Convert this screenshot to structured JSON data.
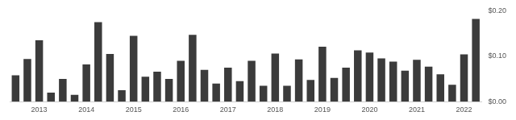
{
  "chart_data": {
    "type": "bar",
    "categories": [
      null,
      null,
      "2013",
      null,
      null,
      null,
      "2014",
      null,
      null,
      null,
      "2015",
      null,
      null,
      null,
      "2016",
      null,
      null,
      null,
      "2017",
      null,
      null,
      null,
      "2018",
      null,
      null,
      null,
      "2019",
      null,
      null,
      null,
      "2020",
      null,
      null,
      null,
      "2021",
      null,
      null,
      null,
      "2022",
      null
    ],
    "values": [
      0.058,
      0.094,
      0.135,
      0.02,
      0.05,
      0.015,
      0.082,
      0.175,
      0.105,
      0.025,
      0.145,
      0.055,
      0.066,
      0.05,
      0.09,
      0.147,
      0.07,
      0.04,
      0.075,
      0.045,
      0.09,
      0.035,
      0.106,
      0.035,
      0.093,
      0.048,
      0.121,
      0.052,
      0.075,
      0.113,
      0.108,
      0.095,
      0.088,
      0.068,
      0.092,
      0.077,
      0.06,
      0.037,
      0.104,
      0.182
    ],
    "color": "#3b3b3b",
    "ylim": [
      0,
      0.2
    ],
    "yticks": [
      {
        "value": 0,
        "label": "$0.00"
      },
      {
        "value": 0.1,
        "label": "$0.10"
      },
      {
        "value": 0.2,
        "label": "$0.20"
      }
    ],
    "grid": false
  }
}
